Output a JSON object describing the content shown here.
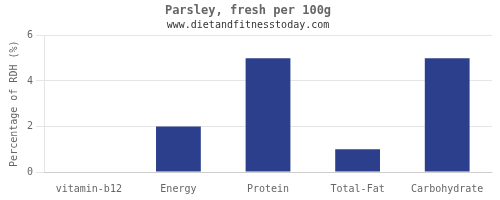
{
  "chart_data": {
    "type": "bar",
    "title": "Parsley, fresh per 100g",
    "subtitle": "www.dietandfitnesstoday.com",
    "categories": [
      "vitamin-b12",
      "Energy",
      "Protein",
      "Total-Fat",
      "Carbohydrate"
    ],
    "values": [
      0,
      2.0,
      5.0,
      1.0,
      5.0
    ],
    "color": "#2b3f8c",
    "ylabel": "Percentage of RDH (%)",
    "ylim": [
      0,
      6
    ],
    "yticks": [
      0,
      2,
      4,
      6
    ],
    "grid": true
  }
}
